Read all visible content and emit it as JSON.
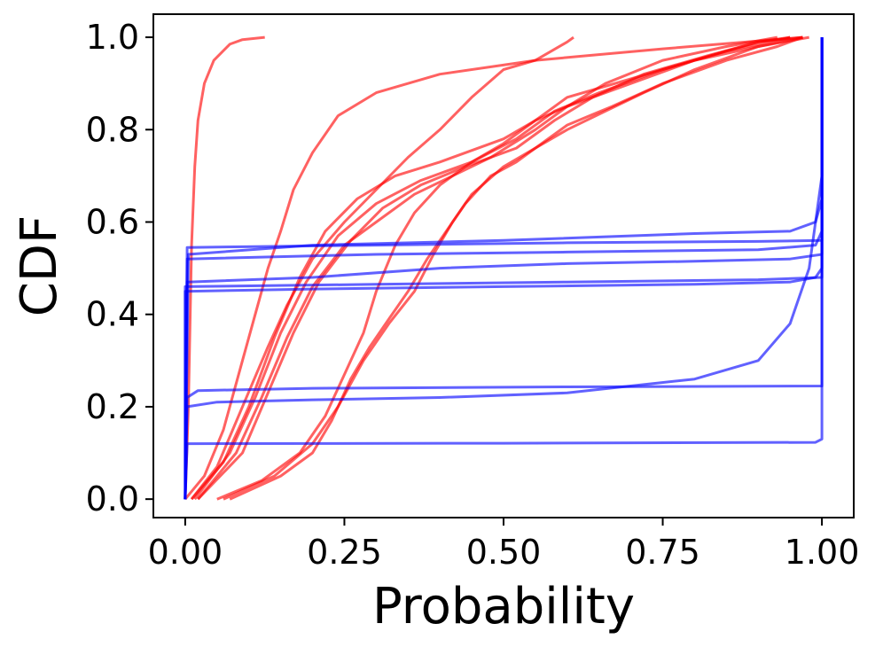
{
  "chart_data": {
    "type": "line",
    "title": "",
    "xlabel": "Probability",
    "ylabel": "CDF",
    "xlim": [
      -0.05,
      1.05
    ],
    "ylim": [
      -0.04,
      1.05
    ],
    "xticks": [
      0.0,
      0.25,
      0.5,
      0.75,
      1.0
    ],
    "xtick_labels": [
      "0.00",
      "0.25",
      "0.50",
      "0.75",
      "1.00"
    ],
    "yticks": [
      0.0,
      0.2,
      0.4,
      0.6,
      0.8,
      1.0
    ],
    "ytick_labels": [
      "0.0",
      "0.2",
      "0.4",
      "0.6",
      "0.8",
      "1.0"
    ],
    "grid": false,
    "legend": "none",
    "colors": {
      "red_series": "#ff0000",
      "blue_series": "#0000ff",
      "axes": "#000000"
    },
    "series": [
      {
        "color": "red",
        "points": [
          [
            0.0,
            0.0
          ],
          [
            0.005,
            0.2
          ],
          [
            0.01,
            0.55
          ],
          [
            0.015,
            0.72
          ],
          [
            0.02,
            0.82
          ],
          [
            0.03,
            0.9
          ],
          [
            0.045,
            0.95
          ],
          [
            0.07,
            0.985
          ],
          [
            0.09,
            0.995
          ],
          [
            0.125,
            1.0
          ]
        ]
      },
      {
        "color": "red",
        "points": [
          [
            0.0,
            0.0
          ],
          [
            0.03,
            0.05
          ],
          [
            0.06,
            0.15
          ],
          [
            0.09,
            0.3
          ],
          [
            0.11,
            0.4
          ],
          [
            0.13,
            0.5
          ],
          [
            0.15,
            0.58
          ],
          [
            0.17,
            0.67
          ],
          [
            0.2,
            0.75
          ],
          [
            0.24,
            0.83
          ],
          [
            0.3,
            0.88
          ],
          [
            0.4,
            0.92
          ],
          [
            0.55,
            0.95
          ],
          [
            0.75,
            0.975
          ],
          [
            0.97,
            1.0
          ]
        ]
      },
      {
        "color": "red",
        "points": [
          [
            0.01,
            0.0
          ],
          [
            0.05,
            0.07
          ],
          [
            0.09,
            0.2
          ],
          [
            0.13,
            0.33
          ],
          [
            0.16,
            0.42
          ],
          [
            0.2,
            0.52
          ],
          [
            0.25,
            0.6
          ],
          [
            0.3,
            0.67
          ],
          [
            0.35,
            0.74
          ],
          [
            0.4,
            0.8
          ],
          [
            0.45,
            0.87
          ],
          [
            0.5,
            0.93
          ],
          [
            0.55,
            0.95
          ],
          [
            0.6,
            0.99
          ],
          [
            0.61,
            1.0
          ]
        ]
      },
      {
        "color": "red",
        "points": [
          [
            0.01,
            0.0
          ],
          [
            0.06,
            0.08
          ],
          [
            0.1,
            0.2
          ],
          [
            0.14,
            0.35
          ],
          [
            0.18,
            0.48
          ],
          [
            0.22,
            0.58
          ],
          [
            0.27,
            0.65
          ],
          [
            0.33,
            0.7
          ],
          [
            0.4,
            0.73
          ],
          [
            0.5,
            0.78
          ],
          [
            0.55,
            0.82
          ],
          [
            0.6,
            0.85
          ],
          [
            0.7,
            0.9
          ],
          [
            0.8,
            0.95
          ],
          [
            0.9,
            0.98
          ],
          [
            0.97,
            1.0
          ]
        ]
      },
      {
        "color": "red",
        "points": [
          [
            0.015,
            0.0
          ],
          [
            0.07,
            0.1
          ],
          [
            0.11,
            0.22
          ],
          [
            0.15,
            0.36
          ],
          [
            0.19,
            0.47
          ],
          [
            0.24,
            0.57
          ],
          [
            0.3,
            0.64
          ],
          [
            0.37,
            0.69
          ],
          [
            0.45,
            0.73
          ],
          [
            0.52,
            0.78
          ],
          [
            0.58,
            0.84
          ],
          [
            0.65,
            0.88
          ],
          [
            0.75,
            0.93
          ],
          [
            0.85,
            0.97
          ],
          [
            0.95,
            1.0
          ]
        ]
      },
      {
        "color": "red",
        "points": [
          [
            0.02,
            0.0
          ],
          [
            0.08,
            0.1
          ],
          [
            0.12,
            0.22
          ],
          [
            0.16,
            0.35
          ],
          [
            0.2,
            0.46
          ],
          [
            0.25,
            0.55
          ],
          [
            0.3,
            0.6
          ],
          [
            0.36,
            0.66
          ],
          [
            0.42,
            0.7
          ],
          [
            0.48,
            0.74
          ],
          [
            0.55,
            0.8
          ],
          [
            0.6,
            0.85
          ],
          [
            0.66,
            0.9
          ],
          [
            0.75,
            0.95
          ],
          [
            0.85,
            0.98
          ],
          [
            0.93,
            1.0
          ]
        ]
      },
      {
        "color": "red",
        "points": [
          [
            0.02,
            0.0
          ],
          [
            0.09,
            0.1
          ],
          [
            0.13,
            0.23
          ],
          [
            0.17,
            0.36
          ],
          [
            0.21,
            0.47
          ],
          [
            0.26,
            0.56
          ],
          [
            0.31,
            0.63
          ],
          [
            0.37,
            0.68
          ],
          [
            0.44,
            0.72
          ],
          [
            0.52,
            0.76
          ],
          [
            0.58,
            0.82
          ],
          [
            0.64,
            0.87
          ],
          [
            0.72,
            0.92
          ],
          [
            0.82,
            0.96
          ],
          [
            0.9,
            0.99
          ],
          [
            0.95,
            1.0
          ]
        ]
      },
      {
        "color": "red",
        "points": [
          [
            0.05,
            0.0
          ],
          [
            0.12,
            0.04
          ],
          [
            0.18,
            0.1
          ],
          [
            0.22,
            0.18
          ],
          [
            0.25,
            0.27
          ],
          [
            0.28,
            0.36
          ],
          [
            0.3,
            0.45
          ],
          [
            0.33,
            0.55
          ],
          [
            0.36,
            0.62
          ],
          [
            0.4,
            0.68
          ],
          [
            0.45,
            0.73
          ],
          [
            0.5,
            0.77
          ],
          [
            0.55,
            0.82
          ],
          [
            0.6,
            0.87
          ],
          [
            0.7,
            0.91
          ],
          [
            0.8,
            0.95
          ],
          [
            0.9,
            0.99
          ],
          [
            0.97,
            1.0
          ]
        ]
      },
      {
        "color": "red",
        "points": [
          [
            0.06,
            0.0
          ],
          [
            0.14,
            0.05
          ],
          [
            0.2,
            0.12
          ],
          [
            0.24,
            0.2
          ],
          [
            0.28,
            0.3
          ],
          [
            0.32,
            0.38
          ],
          [
            0.36,
            0.45
          ],
          [
            0.39,
            0.53
          ],
          [
            0.42,
            0.6
          ],
          [
            0.45,
            0.66
          ],
          [
            0.5,
            0.72
          ],
          [
            0.55,
            0.76
          ],
          [
            0.6,
            0.8
          ],
          [
            0.66,
            0.84
          ],
          [
            0.72,
            0.88
          ],
          [
            0.8,
            0.93
          ],
          [
            0.9,
            0.98
          ],
          [
            0.98,
            1.0
          ]
        ]
      },
      {
        "color": "red",
        "points": [
          [
            0.07,
            0.0
          ],
          [
            0.15,
            0.05
          ],
          [
            0.2,
            0.1
          ],
          [
            0.23,
            0.17
          ],
          [
            0.26,
            0.26
          ],
          [
            0.29,
            0.33
          ],
          [
            0.32,
            0.39
          ],
          [
            0.35,
            0.45
          ],
          [
            0.38,
            0.52
          ],
          [
            0.41,
            0.58
          ],
          [
            0.44,
            0.64
          ],
          [
            0.48,
            0.7
          ],
          [
            0.52,
            0.73
          ],
          [
            0.56,
            0.77
          ],
          [
            0.6,
            0.81
          ],
          [
            0.67,
            0.85
          ],
          [
            0.75,
            0.9
          ],
          [
            0.85,
            0.95
          ],
          [
            0.93,
            0.98
          ],
          [
            0.97,
            1.0
          ]
        ]
      },
      {
        "color": "blue",
        "points": [
          [
            0.0,
            0.0
          ],
          [
            0.0,
            0.45
          ],
          [
            0.2,
            0.455
          ],
          [
            0.5,
            0.46
          ],
          [
            0.8,
            0.465
          ],
          [
            0.95,
            0.47
          ],
          [
            0.99,
            0.48
          ],
          [
            1.0,
            0.5
          ],
          [
            1.0,
            1.0
          ]
        ]
      },
      {
        "color": "blue",
        "points": [
          [
            0.0,
            0.0
          ],
          [
            0.0,
            0.46
          ],
          [
            0.3,
            0.465
          ],
          [
            0.6,
            0.47
          ],
          [
            0.9,
            0.475
          ],
          [
            1.0,
            0.48
          ],
          [
            1.0,
            1.0
          ]
        ]
      },
      {
        "color": "blue",
        "points": [
          [
            0.0,
            0.0
          ],
          [
            0.003,
            0.47
          ],
          [
            0.2,
            0.48
          ],
          [
            0.4,
            0.5
          ],
          [
            0.6,
            0.51
          ],
          [
            0.8,
            0.515
          ],
          [
            0.95,
            0.52
          ],
          [
            1.0,
            0.53
          ],
          [
            1.0,
            1.0
          ]
        ]
      },
      {
        "color": "blue",
        "points": [
          [
            0.0,
            0.0
          ],
          [
            0.003,
            0.52
          ],
          [
            0.3,
            0.53
          ],
          [
            0.6,
            0.535
          ],
          [
            0.9,
            0.54
          ],
          [
            0.99,
            0.55
          ],
          [
            1.0,
            0.58
          ],
          [
            1.0,
            1.0
          ]
        ]
      },
      {
        "color": "blue",
        "points": [
          [
            0.0,
            0.0
          ],
          [
            0.003,
            0.545
          ],
          [
            0.3,
            0.55
          ],
          [
            0.6,
            0.555
          ],
          [
            0.9,
            0.558
          ],
          [
            1.0,
            0.56
          ],
          [
            1.0,
            1.0
          ]
        ]
      },
      {
        "color": "blue",
        "points": [
          [
            0.0,
            0.0
          ],
          [
            0.005,
            0.53
          ],
          [
            0.2,
            0.55
          ],
          [
            0.5,
            0.56
          ],
          [
            0.8,
            0.575
          ],
          [
            0.95,
            0.58
          ],
          [
            0.99,
            0.6
          ],
          [
            1.0,
            0.65
          ],
          [
            1.0,
            1.0
          ]
        ]
      },
      {
        "color": "blue",
        "points": [
          [
            0.0,
            0.0
          ],
          [
            0.003,
            0.2
          ],
          [
            0.05,
            0.21
          ],
          [
            0.2,
            0.215
          ],
          [
            0.4,
            0.22
          ],
          [
            0.6,
            0.23
          ],
          [
            0.8,
            0.26
          ],
          [
            0.9,
            0.3
          ],
          [
            0.95,
            0.38
          ],
          [
            0.98,
            0.5
          ],
          [
            1.0,
            0.7
          ],
          [
            1.0,
            1.0
          ]
        ]
      },
      {
        "color": "blue",
        "points": [
          [
            0.0,
            0.0
          ],
          [
            0.003,
            0.22
          ],
          [
            0.02,
            0.235
          ],
          [
            0.2,
            0.24
          ],
          [
            0.6,
            0.243
          ],
          [
            1.0,
            0.245
          ],
          [
            1.0,
            1.0
          ]
        ]
      },
      {
        "color": "blue",
        "points": [
          [
            0.0,
            0.0
          ],
          [
            0.003,
            0.12
          ],
          [
            0.5,
            0.121
          ],
          [
            0.99,
            0.123
          ],
          [
            1.0,
            0.13
          ],
          [
            1.0,
            1.0
          ]
        ]
      }
    ]
  }
}
